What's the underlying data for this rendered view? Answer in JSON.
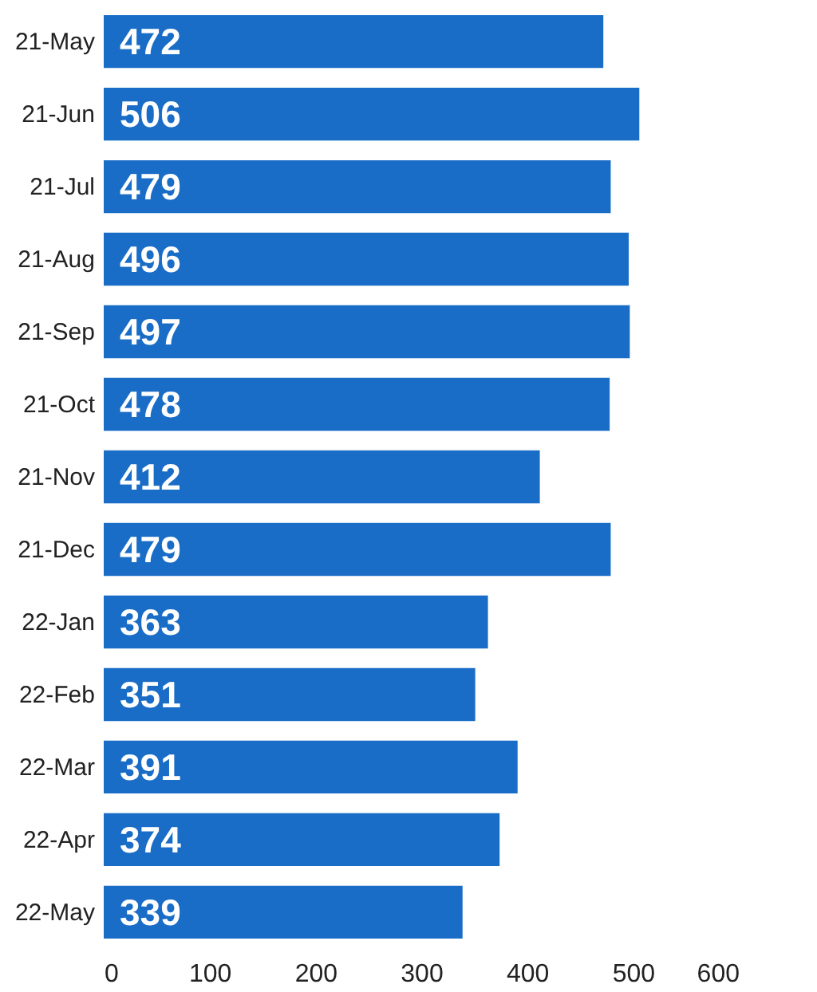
{
  "chart_data": {
    "type": "bar",
    "orientation": "horizontal",
    "categories": [
      "21-May",
      "21-Jun",
      "21-Jul",
      "21-Aug",
      "21-Sep",
      "21-Oct",
      "21-Nov",
      "21-Dec",
      "22-Jan",
      "22-Feb",
      "22-Mar",
      "22-Apr",
      "22-May"
    ],
    "values": [
      472,
      506,
      479,
      496,
      497,
      478,
      412,
      479,
      363,
      351,
      391,
      374,
      339
    ],
    "color": "#1a6dc6",
    "xlim": [
      0,
      600
    ],
    "xticks": [
      0,
      100,
      200,
      300,
      400,
      500,
      600
    ],
    "data_labels": true,
    "grid": false
  }
}
